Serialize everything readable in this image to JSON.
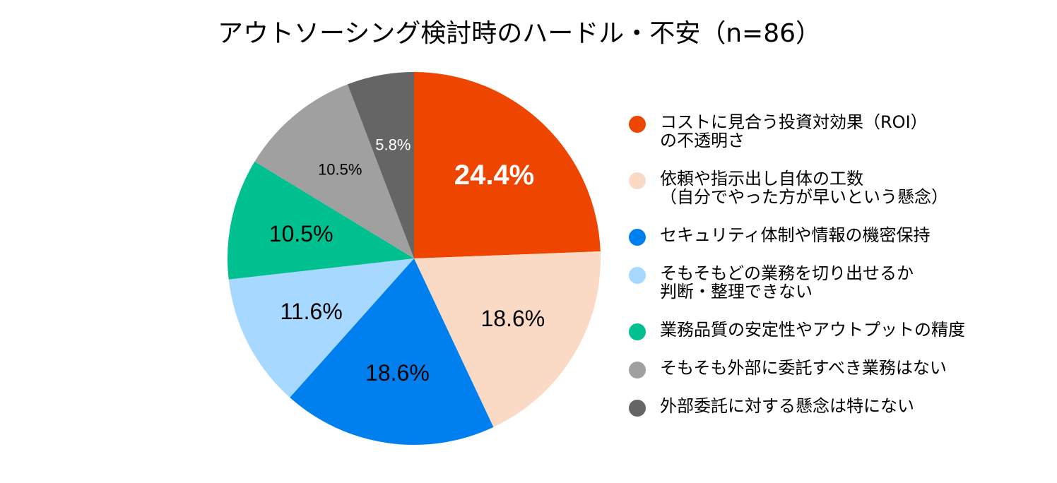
{
  "chart_data": {
    "type": "pie",
    "title": "アウトソーシング検討時のハードル・不安（n=86）",
    "slices": [
      {
        "label_lines": [
          "コストに見合う投資対効果（ROI）",
          "の不透明さ"
        ],
        "value": 24.4,
        "display": "24.4%",
        "color": "#EE4500",
        "label_color": "#ffffff",
        "label_weight": "bold",
        "label_size": "large"
      },
      {
        "label_lines": [
          "依頼や指示出し自体の工数",
          "（自分でやった方が早いという懸念）"
        ],
        "value": 18.6,
        "display": "18.6%",
        "color": "#FBDAC5",
        "label_color": "#000000",
        "label_weight": "normal",
        "label_size": "medium"
      },
      {
        "label_lines": [
          "セキュリティ体制や情報の機密保持"
        ],
        "value": 18.6,
        "display": "18.6%",
        "color": "#0080EF",
        "label_color": "#000000",
        "label_weight": "normal",
        "label_size": "medium"
      },
      {
        "label_lines": [
          "そもそもどの業務を切り出せるか",
          "判断・整理できない"
        ],
        "value": 11.6,
        "display": "11.6%",
        "color": "#A7D8FF",
        "label_color": "#000000",
        "label_weight": "normal",
        "label_size": "medium"
      },
      {
        "label_lines": [
          "業務品質の安定性やアウトプットの精度"
        ],
        "value": 10.5,
        "display": "10.5%",
        "color": "#00C08F",
        "label_color": "#000000",
        "label_weight": "normal",
        "label_size": "medium"
      },
      {
        "label_lines": [
          "そもそも外部に委託すべき業務はない"
        ],
        "value": 10.5,
        "display": "10.5%",
        "color": "#A0A0A0",
        "label_color": "#000000",
        "label_weight": "normal",
        "label_size": "small"
      },
      {
        "label_lines": [
          "外部委託に対する懸念は特にない"
        ],
        "value": 5.8,
        "display": "5.8%",
        "color": "#656565",
        "label_color": "#ffffff",
        "label_weight": "normal",
        "label_size": "small"
      }
    ],
    "start_angle": "12 o'clock",
    "direction": "clockwise",
    "legend_position": "right"
  }
}
